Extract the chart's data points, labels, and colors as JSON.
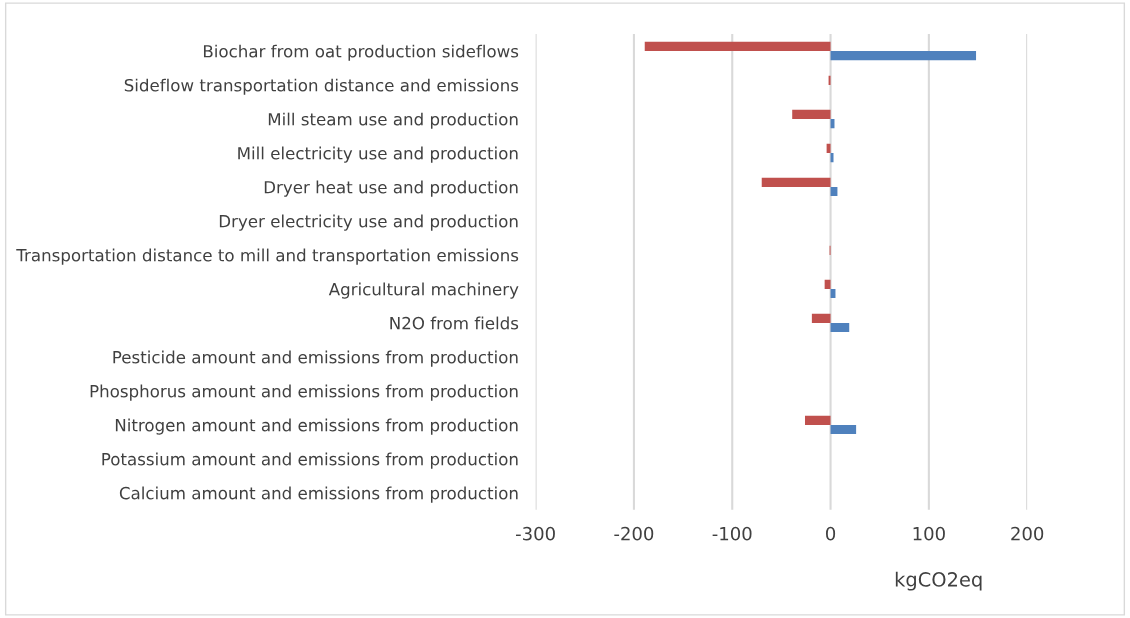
{
  "chart_data": {
    "type": "bar",
    "orientation": "horizontal",
    "xlabel": "kgCO2eq",
    "categories": [
      "Biochar from oat production sideflows",
      "Sideflow transportation distance and emissions",
      "Mill steam use and production",
      "Mill electricity use and production",
      "Dryer heat use and production",
      "Dryer electricity use and production",
      "Transportation distance to mill and transportation emissions",
      "Agricultural machinery",
      "N2O from fields",
      "Pesticide amount and emissions from production",
      "Phosphorus amount and emissions from production",
      "Nitrogen amount and emissions from production",
      "Potassium amount and emissions from production",
      "Calcium amount and emissions from production"
    ],
    "series": [
      {
        "color": "#c0504d",
        "values": [
          -189,
          -2,
          -39,
          -4,
          -70,
          null,
          -1,
          -6,
          -19,
          null,
          null,
          -26,
          null,
          null
        ]
      },
      {
        "color": "#4f81bd",
        "values": [
          148,
          null,
          4,
          3,
          7,
          null,
          null,
          5,
          19,
          null,
          null,
          26,
          null,
          null
        ]
      }
    ],
    "xlim": [
      -300,
      200
    ],
    "xticks": [
      -300,
      -200,
      -100,
      0,
      100,
      200
    ],
    "grid": "x",
    "legend": false
  }
}
